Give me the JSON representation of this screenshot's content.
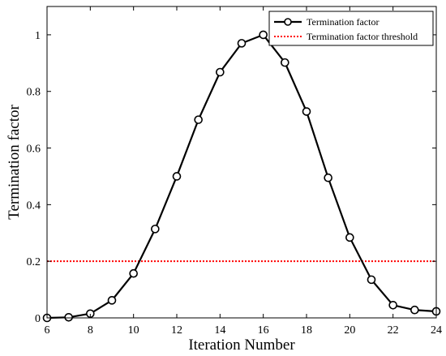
{
  "chart_data": {
    "type": "line",
    "xlabel": "Iteration Number",
    "ylabel": "Termination factor",
    "xlim": [
      6,
      24
    ],
    "ylim": [
      0,
      1.1
    ],
    "xticks": [
      6,
      8,
      10,
      12,
      14,
      16,
      18,
      20,
      22,
      24
    ],
    "yticks": [
      0,
      0.2,
      0.4,
      0.6,
      0.8,
      1
    ],
    "xtick_labels": [
      "6",
      "8",
      "10",
      "12",
      "14",
      "16",
      "18",
      "20",
      "22",
      "24"
    ],
    "ytick_labels": [
      "0",
      "0.2",
      "0.4",
      "0.6",
      "0.8",
      "1"
    ],
    "grid": false,
    "legend_position": "top-right",
    "series": [
      {
        "name": "Termination factor",
        "color": "#000000",
        "style": "solid-circle-markers",
        "x": [
          6,
          7,
          8,
          9,
          10,
          11,
          12,
          13,
          14,
          15,
          16,
          17,
          18,
          19,
          20,
          21,
          22,
          23,
          24
        ],
        "y": [
          0.0,
          0.002,
          0.015,
          0.062,
          0.157,
          0.314,
          0.5,
          0.7,
          0.868,
          0.97,
          1.0,
          0.902,
          0.729,
          0.495,
          0.284,
          0.135,
          0.045,
          0.028,
          0.023
        ]
      },
      {
        "name": "Termination factor threshold",
        "color": "#ff0000",
        "style": "dotted",
        "x": [
          6,
          24
        ],
        "y": [
          0.2,
          0.2
        ]
      }
    ]
  }
}
